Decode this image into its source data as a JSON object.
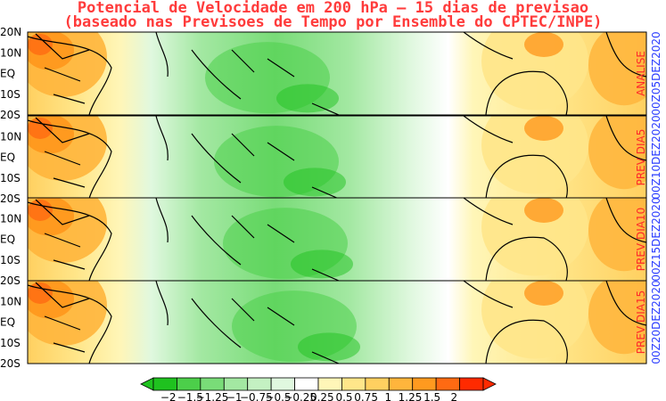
{
  "title_line1": "Potencial de Velocidade em 200 hPa – 15 dias de previsao",
  "title_line2": "(baseado nas Previsoes de Tempo por Ensemble do CPTEC/INPE)",
  "lat_labels": [
    "20N",
    "10N",
    "EQ",
    "10S",
    "20S"
  ],
  "panels": [
    {
      "label": "ANALISE",
      "date": "00Z05DEZ2020"
    },
    {
      "label": "PREV DIA5",
      "date": "00Z10DEZ2020"
    },
    {
      "label": "PREV DIA10",
      "date": "00Z15DEZ2020"
    },
    {
      "label": "PREV DIA15",
      "date": "00Z20DEZ2020"
    }
  ],
  "colorbar": {
    "labels": [
      "−2",
      "−1.5",
      "−1.25",
      "−1",
      "−0.75",
      "−0.5",
      "−0.25",
      "0.25",
      "0.5",
      "0.75",
      "1",
      "1.25",
      "1.5",
      "2"
    ],
    "colors": [
      "#1fc21f",
      "#4ccf4a",
      "#79dc78",
      "#a3e8a2",
      "#c4f1c2",
      "#e0f8df",
      "#ffffff",
      "#fff6b8",
      "#ffe68a",
      "#ffd060",
      "#ffb53c",
      "#ff9a1f",
      "#ff6a12",
      "#ff2a00"
    ]
  }
}
